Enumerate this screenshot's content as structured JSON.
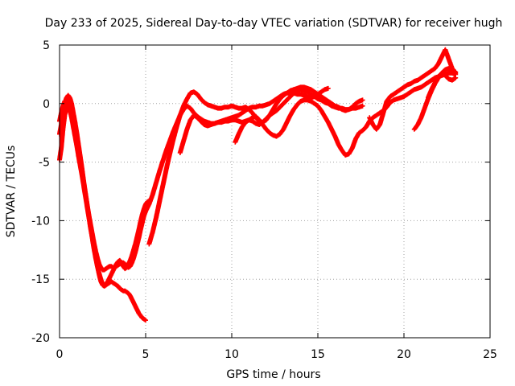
{
  "chart_data": {
    "type": "scatter",
    "title": "Day 233 of 2025, Sidereal Day-to-day VTEC variation (SDTVAR) for receiver hugh",
    "xlabel": "GPS time / hours",
    "ylabel": "SDTVAR / TECUs",
    "xlim": [
      0,
      25
    ],
    "ylim": [
      -20,
      5
    ],
    "xticks": [
      "0",
      "5",
      "10",
      "15",
      "20",
      "25"
    ],
    "yticks": [
      "5",
      "0",
      "-5",
      "-10",
      "-15",
      "-20"
    ],
    "grid": true,
    "legend": "none",
    "marker_color": "#ff0000",
    "series": [
      {
        "x": [
          0.0,
          0.1,
          0.2,
          0.3,
          0.4,
          0.5,
          0.6,
          0.7,
          0.8,
          0.9,
          1.0,
          1.1,
          1.2,
          1.3,
          1.4,
          1.5,
          1.6,
          1.7,
          1.8,
          1.9,
          2.0,
          2.1,
          2.2,
          2.3,
          2.4,
          2.5,
          2.6,
          2.7,
          2.8,
          2.9,
          3.0,
          3.1,
          3.2,
          3.3,
          3.4,
          3.5,
          3.6,
          3.7,
          3.8,
          3.9,
          4.0,
          4.1,
          4.2,
          4.3,
          4.4,
          4.5,
          4.6,
          4.7,
          4.8,
          4.9,
          5.0
        ],
        "y": [
          -4.8,
          -3.8,
          -2.2,
          -1.0,
          -0.4,
          -0.3,
          -0.6,
          -1.2,
          -2.0,
          -2.8,
          -3.6,
          -4.5,
          -5.3,
          -6.1,
          -7.0,
          -7.9,
          -8.8,
          -9.7,
          -10.6,
          -11.4,
          -12.3,
          -13.1,
          -13.9,
          -14.6,
          -15.2,
          -15.5,
          -15.6,
          -15.5,
          -15.4,
          -15.3,
          -15.2,
          -15.3,
          -15.4,
          -15.5,
          -15.6,
          -15.8,
          -15.9,
          -16.0,
          -16.0,
          -16.1,
          -16.2,
          -16.4,
          -16.7,
          -17.0,
          -17.3,
          -17.6,
          -17.9,
          -18.1,
          -18.3,
          -18.4,
          -18.5
        ]
      },
      {
        "x": [
          0.0,
          0.1,
          0.2,
          0.3,
          0.4,
          0.5,
          0.6,
          0.7,
          0.8,
          0.9,
          1.0,
          1.1,
          1.2,
          1.3,
          1.4,
          1.5,
          1.6,
          1.7,
          1.8,
          1.9,
          2.0,
          2.1,
          2.2,
          2.3,
          2.4,
          2.5,
          2.6,
          2.7,
          2.8,
          2.9,
          3.0,
          3.1,
          3.2,
          3.3,
          3.4,
          3.5,
          3.6,
          3.7,
          3.8,
          3.9,
          4.0,
          4.1,
          4.2,
          4.3,
          4.4,
          4.5,
          4.6,
          4.7,
          4.8,
          4.9,
          5.0,
          5.1,
          5.2
        ],
        "y": [
          -2.6,
          -1.8,
          -0.8,
          0.0,
          0.5,
          0.7,
          0.5,
          0.0,
          -0.8,
          -1.6,
          -2.5,
          -3.5,
          -4.5,
          -5.5,
          -6.6,
          -7.6,
          -8.6,
          -9.6,
          -10.6,
          -11.5,
          -12.4,
          -13.2,
          -13.9,
          -14.5,
          -15.0,
          -15.4,
          -15.5,
          -15.4,
          -15.2,
          -14.9,
          -14.6,
          -14.3,
          -14.0,
          -13.7,
          -13.5,
          -13.4,
          -13.6,
          -13.9,
          -14.1,
          -14.0,
          -13.7,
          -13.4,
          -13.0,
          -12.5,
          -12.0,
          -11.4,
          -10.8,
          -10.1,
          -9.5,
          -9.0,
          -8.6,
          -8.4,
          -8.3
        ]
      },
      {
        "x": [
          0.0,
          0.1,
          0.2,
          0.3,
          0.4,
          0.5,
          0.6,
          0.7,
          0.8,
          0.9,
          1.0,
          1.1,
          1.2,
          1.3,
          1.4,
          1.5,
          1.6,
          1.7,
          1.8,
          1.9,
          2.0,
          2.1,
          2.2,
          2.3,
          2.4,
          2.5,
          2.6,
          2.7,
          2.8,
          2.9,
          3.0,
          3.1,
          3.2,
          3.3,
          3.4,
          3.5,
          3.6,
          3.7,
          3.8,
          3.9,
          4.0,
          4.1,
          4.2,
          4.3,
          4.4,
          4.5,
          4.6,
          4.7,
          4.8,
          4.9,
          5.0,
          5.2,
          5.4,
          5.6,
          5.8,
          6.0,
          6.2,
          6.4,
          6.6,
          6.8,
          7.0,
          7.2,
          7.4,
          7.6,
          7.8,
          8.0,
          8.2,
          8.4,
          8.6,
          8.8,
          9.0,
          9.2,
          9.4,
          9.6,
          9.8,
          10.0,
          10.2,
          10.4,
          10.6,
          10.8,
          11.0,
          11.2,
          11.4,
          11.6,
          11.8,
          12.0,
          12.2,
          12.4,
          12.6,
          12.8,
          13.0,
          13.2,
          13.4,
          13.6,
          13.8,
          14.0,
          14.2,
          14.4,
          14.6,
          14.8,
          15.0,
          15.2,
          15.4,
          15.6,
          15.8,
          16.0,
          16.2,
          16.4,
          16.6,
          16.8,
          17.0,
          17.2,
          17.4,
          17.6,
          17.8,
          18.0,
          18.2,
          18.4,
          18.6,
          18.8,
          19.0,
          19.2,
          19.4,
          19.6,
          19.8,
          20.0,
          20.2,
          20.4,
          20.6,
          20.8,
          21.0,
          21.2,
          21.4,
          21.6,
          21.8,
          22.0,
          22.2,
          22.4,
          22.6,
          22.8,
          23.0
        ],
        "y": [
          -1.5,
          -0.8,
          -0.2,
          0.2,
          0.3,
          0.1,
          -0.3,
          -0.9,
          -1.6,
          -2.4,
          -3.2,
          -4.1,
          -5.0,
          -5.9,
          -6.8,
          -7.7,
          -8.6,
          -9.5,
          -10.3,
          -11.1,
          -11.9,
          -12.6,
          -13.2,
          -13.7,
          -14.0,
          -14.2,
          -14.2,
          -14.1,
          -14.0,
          -13.9,
          -13.9,
          -14.0,
          -14.0,
          -13.9,
          -13.8,
          -13.7,
          -13.6,
          -13.6,
          -13.7,
          -13.9,
          -14.0,
          -13.9,
          -13.6,
          -13.2,
          -12.7,
          -12.1,
          -11.5,
          -10.8,
          -10.2,
          -9.6,
          -9.2,
          -8.6,
          -7.8,
          -6.8,
          -5.8,
          -4.9,
          -4.0,
          -3.2,
          -2.4,
          -1.7,
          -1.0,
          -0.5,
          -0.2,
          -0.4,
          -0.8,
          -1.1,
          -1.3,
          -1.5,
          -1.6,
          -1.7,
          -1.7,
          -1.6,
          -1.6,
          -1.5,
          -1.5,
          -1.4,
          -1.4,
          -1.5,
          -1.6,
          -1.5,
          -1.4,
          -1.2,
          -1.1,
          -1.4,
          -1.8,
          -2.2,
          -2.5,
          -2.7,
          -2.8,
          -2.6,
          -2.2,
          -1.6,
          -1.0,
          -0.5,
          -0.1,
          0.2,
          0.3,
          0.3,
          0.2,
          0.0,
          -0.2,
          -0.6,
          -1.1,
          -1.6,
          -2.2,
          -2.8,
          -3.5,
          -4.0,
          -4.4,
          -4.3,
          -3.8,
          -3.0,
          -2.5,
          -2.3,
          -2.0,
          -1.5,
          -1.2,
          -1.0,
          -0.8,
          -0.6,
          -0.3,
          0.1,
          0.3,
          0.4,
          0.5,
          0.6,
          0.8,
          1.0,
          1.2,
          1.3,
          1.4,
          1.6,
          1.8,
          2.0,
          2.2,
          2.3,
          2.4,
          2.5,
          2.6,
          2.6,
          2.5
        ]
      },
      {
        "x": [
          5.2,
          5.4,
          5.6,
          5.8,
          6.0,
          6.2,
          6.4,
          6.6,
          6.8,
          7.0,
          7.2,
          7.4,
          7.6,
          7.8,
          8.0,
          8.2,
          8.4,
          8.6,
          8.8,
          9.0,
          9.2,
          9.4,
          9.6,
          9.8,
          10.0,
          10.2,
          10.4,
          10.6,
          10.8,
          11.0,
          11.2,
          11.4,
          11.6,
          11.8,
          12.0,
          12.2,
          12.4,
          12.6,
          12.8,
          13.0,
          13.2,
          13.4,
          13.6,
          13.8,
          14.0,
          14.2,
          14.4,
          14.6,
          14.8,
          15.0,
          15.2,
          15.4,
          15.6,
          15.8,
          16.0,
          16.2,
          16.4,
          16.6,
          16.8,
          17.0,
          17.2,
          17.4,
          17.6
        ],
        "y": [
          -12.0,
          -11.0,
          -9.8,
          -8.4,
          -7.0,
          -5.6,
          -4.3,
          -3.1,
          -2.0,
          -1.0,
          -0.2,
          0.4,
          0.9,
          1.0,
          0.8,
          0.4,
          0.1,
          -0.1,
          -0.2,
          -0.3,
          -0.4,
          -0.4,
          -0.3,
          -0.3,
          -0.2,
          -0.3,
          -0.4,
          -0.4,
          -0.3,
          -0.5,
          -0.8,
          -1.2,
          -1.5,
          -1.6,
          -1.4,
          -1.0,
          -0.5,
          0.0,
          0.4,
          0.7,
          0.9,
          1.1,
          1.2,
          1.3,
          1.4,
          1.4,
          1.3,
          1.2,
          1.0,
          0.8,
          0.6,
          0.4,
          0.2,
          0.0,
          -0.2,
          -0.3,
          -0.5,
          -0.6,
          -0.5,
          -0.3,
          0.0,
          0.2,
          0.3
        ]
      },
      {
        "x": [
          7.0,
          7.2,
          7.4,
          7.6,
          7.8,
          8.0,
          8.2,
          8.4,
          8.6,
          8.8,
          9.0,
          9.2,
          9.4,
          9.6,
          9.8,
          10.0,
          10.2,
          10.4,
          10.6,
          10.8,
          11.0,
          11.2,
          11.4,
          11.6,
          11.8,
          12.0,
          12.2,
          12.4,
          12.6,
          12.8,
          13.0,
          13.2,
          13.4,
          13.6,
          13.8,
          14.0,
          14.2,
          14.4,
          14.6,
          14.8,
          15.0,
          15.2,
          15.4,
          15.6
        ],
        "y": [
          -4.2,
          -3.2,
          -2.2,
          -1.4,
          -1.0,
          -1.2,
          -1.5,
          -1.8,
          -1.9,
          -1.8,
          -1.7,
          -1.6,
          -1.5,
          -1.4,
          -1.3,
          -1.2,
          -1.1,
          -1.0,
          -0.8,
          -0.6,
          -0.4,
          -0.3,
          -0.3,
          -0.2,
          -0.2,
          -0.1,
          0.0,
          0.2,
          0.4,
          0.6,
          0.8,
          0.9,
          0.9,
          0.9,
          0.8,
          0.8,
          0.7,
          0.6,
          0.5,
          0.6,
          0.8,
          1.0,
          1.2,
          1.3
        ]
      },
      {
        "x": [
          10.2,
          10.4,
          10.6,
          10.8,
          11.0,
          11.2,
          11.4,
          11.6,
          11.8,
          12.0,
          12.2,
          12.4,
          12.6,
          12.8,
          13.0,
          13.2,
          13.4,
          13.6,
          13.8,
          14.0,
          14.2,
          14.4,
          14.6,
          14.8,
          15.0,
          15.2,
          15.4,
          15.6,
          15.8,
          16.0,
          16.2,
          16.4,
          16.6,
          16.8,
          17.0,
          17.2,
          17.4,
          17.6
        ],
        "y": [
          -3.3,
          -2.6,
          -2.0,
          -1.6,
          -1.4,
          -1.5,
          -1.7,
          -1.8,
          -1.6,
          -1.3,
          -1.0,
          -0.8,
          -0.6,
          -0.3,
          0.0,
          0.3,
          0.6,
          0.9,
          1.1,
          1.2,
          1.1,
          1.0,
          0.8,
          0.6,
          0.4,
          0.3,
          0.1,
          0.0,
          -0.2,
          -0.3,
          -0.4,
          -0.4,
          -0.5,
          -0.5,
          -0.4,
          -0.4,
          -0.3,
          -0.2
        ]
      },
      {
        "x": [
          18.0,
          18.2,
          18.4,
          18.6,
          18.8,
          19.0,
          19.2,
          19.4,
          19.6,
          19.8,
          20.0,
          20.2,
          20.4,
          20.6,
          20.8,
          21.0,
          21.2,
          21.4,
          21.6,
          21.8,
          22.0,
          22.2,
          22.4,
          22.6,
          22.8,
          23.0
        ],
        "y": [
          -1.2,
          -1.8,
          -2.2,
          -1.8,
          -0.8,
          0.2,
          0.6,
          0.8,
          1.0,
          1.2,
          1.4,
          1.6,
          1.7,
          1.9,
          2.0,
          2.2,
          2.4,
          2.6,
          2.8,
          3.0,
          3.4,
          4.0,
          4.6,
          3.8,
          3.0,
          2.6
        ]
      },
      {
        "x": [
          20.6,
          20.8,
          21.0,
          21.2,
          21.4,
          21.6,
          21.8,
          22.0,
          22.2,
          22.4,
          22.6,
          22.8,
          23.0
        ],
        "y": [
          -2.2,
          -1.8,
          -1.2,
          -0.4,
          0.4,
          1.1,
          1.7,
          2.2,
          2.6,
          2.9,
          3.0,
          2.9,
          2.7
        ]
      },
      {
        "x": [
          21.4,
          21.6,
          21.8,
          22.0,
          22.2,
          22.4,
          22.6,
          22.8,
          23.0
        ],
        "y": [
          0.5,
          1.2,
          1.8,
          2.3,
          2.6,
          2.4,
          2.1,
          2.0,
          2.2
        ]
      }
    ]
  }
}
